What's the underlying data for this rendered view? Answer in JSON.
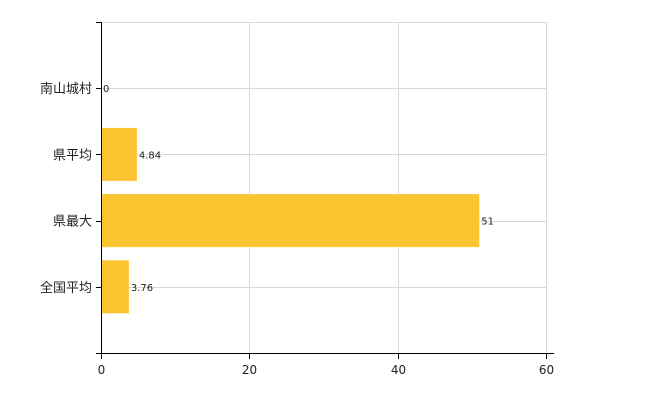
{
  "chart_data": {
    "type": "bar",
    "orientation": "horizontal",
    "categories": [
      "南山城村",
      "県平均",
      "県最大",
      "全国平均"
    ],
    "values": [
      0,
      4.84,
      51,
      3.76
    ],
    "value_labels": [
      "0",
      "4.84",
      "51",
      "3.76"
    ],
    "xlim": [
      0,
      60
    ],
    "x_ticks": [
      0,
      20,
      40,
      60
    ],
    "x_tick_labels": [
      "0",
      "20",
      "40",
      "60"
    ],
    "grid": true,
    "legend": "none",
    "bar_color": "#FBC531",
    "grid_color": "#d9d9d9",
    "axis_color": "#000000"
  }
}
